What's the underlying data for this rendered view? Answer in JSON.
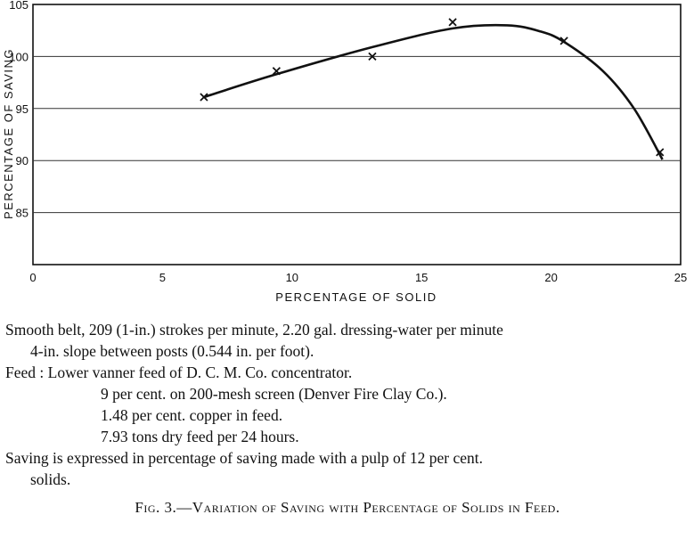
{
  "chart_data": {
    "type": "line",
    "xlabel": "PERCENTAGE OF SOLID",
    "ylabel": "PERCENTAGE OF SAVING",
    "xlim": [
      0,
      25
    ],
    "ylim": [
      80,
      105
    ],
    "x_ticks": [
      0,
      5,
      10,
      15,
      20,
      25
    ],
    "y_ticks": [
      85,
      90,
      95,
      100,
      105
    ],
    "grid": "horizontal",
    "points": [
      {
        "x": 6.6,
        "y": 96.1
      },
      {
        "x": 9.4,
        "y": 98.6
      },
      {
        "x": 13.1,
        "y": 100.0
      },
      {
        "x": 16.2,
        "y": 103.3
      },
      {
        "x": 20.5,
        "y": 101.5
      },
      {
        "x": 24.2,
        "y": 90.8
      }
    ],
    "curve": [
      {
        "x": 6.6,
        "y": 96.1
      },
      {
        "x": 9.4,
        "y": 98.3
      },
      {
        "x": 13.1,
        "y": 100.9
      },
      {
        "x": 16.2,
        "y": 102.7
      },
      {
        "x": 18.3,
        "y": 103.0
      },
      {
        "x": 19.6,
        "y": 102.4
      },
      {
        "x": 20.5,
        "y": 101.4
      },
      {
        "x": 22.0,
        "y": 98.6
      },
      {
        "x": 23.2,
        "y": 95.0
      },
      {
        "x": 24.3,
        "y": 90.1
      }
    ]
  },
  "caption": {
    "line1": "Smooth belt, 209 (1-in.) strokes per minute, 2.20 gal. dressing-water per minute",
    "line2": "4-in. slope between posts (0.544 in. per foot).",
    "feed": "Feed : Lower vanner feed of D. C. M. Co. concentrator.",
    "feed_items": [
      "9 per cent. on 200-mesh screen (Denver Fire Clay Co.).",
      "1.48 per cent. copper in feed.",
      "7.93 tons dry feed per 24 hours."
    ],
    "saving1": "Saving is expressed in percentage of saving made with a pulp of 12 per cent.",
    "saving2": "solids.",
    "fig_prefix": "Fig. 3.",
    "fig_title": "—Variation of Saving with Percentage of Solids in Feed."
  }
}
